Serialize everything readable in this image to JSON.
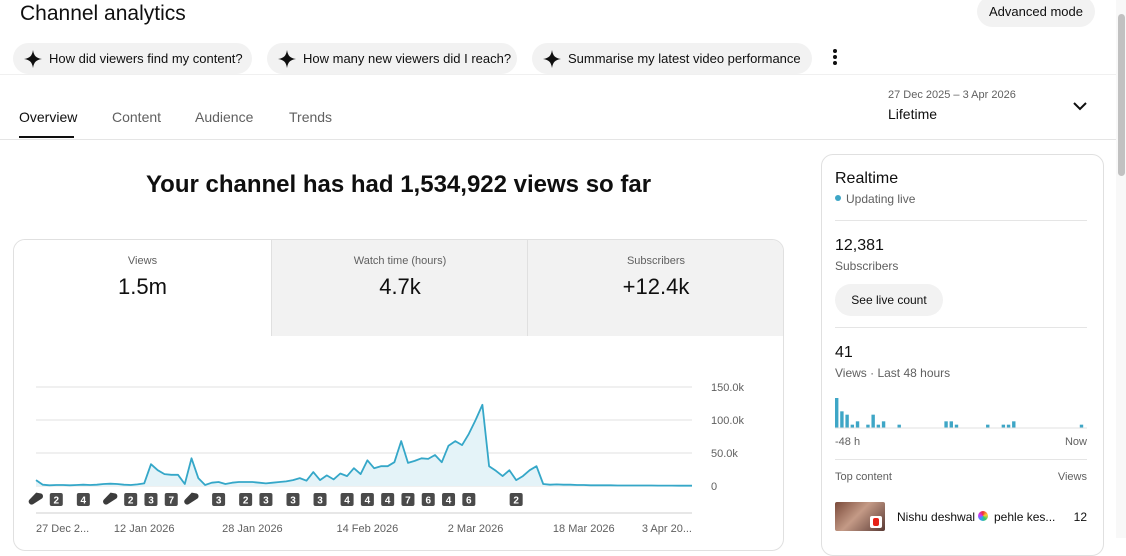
{
  "header": {
    "title": "Channel analytics",
    "advanced_mode": "Advanced mode"
  },
  "suggestions": [
    "How did viewers find my content?",
    "How many new viewers did I reach?",
    "Summarise my latest video performance"
  ],
  "tabs": [
    "Overview",
    "Content",
    "Audience",
    "Trends"
  ],
  "date_range": {
    "range": "27 Dec 2025 – 3 Apr 2026",
    "period": "Lifetime"
  },
  "headline": "Your channel has had 1,534,922 views so far",
  "metrics": [
    {
      "label": "Views",
      "value": "1.5m"
    },
    {
      "label": "Watch time (hours)",
      "value": "4.7k"
    },
    {
      "label": "Subscribers",
      "value": "+12.4k"
    }
  ],
  "realtime": {
    "title": "Realtime",
    "status": "Updating live",
    "subscribers": "12,381",
    "subscribers_label": "Subscribers",
    "button": "See live count",
    "views": "41",
    "views_label": "Views · Last 48 hours",
    "top_content": {
      "title": "Top content",
      "column": "Views",
      "items": [
        {
          "channel": "Nishu deshwal",
          "title": "pehle kes...",
          "views": "12"
        }
      ]
    }
  },
  "chart_data": [
    {
      "type": "line",
      "color": "#35a7c8",
      "fill": "#e4f3f8",
      "grid": true,
      "ylim": [
        0,
        150000
      ],
      "yticks": [
        {
          "value": 0,
          "label": "0"
        },
        {
          "value": 50000,
          "label": "50.0k"
        },
        {
          "value": 100000,
          "label": "100.0k"
        },
        {
          "value": 150000,
          "label": "150.0k"
        }
      ],
      "categories": [
        "27 Dec 2...",
        null,
        null,
        null,
        null,
        null,
        null,
        null,
        null,
        null,
        null,
        null,
        null,
        null,
        null,
        null,
        "12 Jan 2026",
        null,
        null,
        null,
        null,
        null,
        null,
        null,
        null,
        null,
        null,
        null,
        null,
        null,
        null,
        null,
        "28 Jan 2026",
        null,
        null,
        null,
        null,
        null,
        null,
        null,
        null,
        null,
        null,
        null,
        null,
        null,
        null,
        null,
        null,
        "14 Feb 2026",
        null,
        null,
        null,
        null,
        null,
        null,
        null,
        null,
        null,
        null,
        null,
        null,
        null,
        null,
        null,
        "2 Mar 2026",
        null,
        null,
        null,
        null,
        null,
        null,
        null,
        null,
        null,
        null,
        null,
        null,
        null,
        null,
        null,
        "18 Mar 2026",
        null,
        null,
        null,
        null,
        null,
        null,
        null,
        null,
        null,
        null,
        null,
        null,
        null,
        null,
        null,
        "3 Apr 20..."
      ],
      "values": [
        9000,
        2000,
        1000,
        1500,
        1500,
        1000,
        1500,
        2000,
        1500,
        2000,
        3000,
        3500,
        3000,
        2000,
        1500,
        2500,
        4000,
        33000,
        24000,
        18000,
        17000,
        17000,
        3000,
        42000,
        12000,
        1500,
        5000,
        6000,
        3000,
        5000,
        6000,
        6000,
        6000,
        5000,
        4000,
        5000,
        6000,
        7000,
        9000,
        12000,
        8000,
        21000,
        9000,
        16000,
        10000,
        19000,
        15000,
        27000,
        18000,
        39000,
        27000,
        30000,
        30000,
        36000,
        68000,
        35000,
        38000,
        42000,
        41000,
        47000,
        36000,
        61000,
        68000,
        62000,
        79000,
        100000,
        123000,
        30000,
        23000,
        15000,
        24000,
        9000,
        15000,
        24000,
        30000,
        3000,
        2000,
        2500,
        2000,
        2000,
        1500,
        1500,
        1000,
        1000,
        1000,
        1000,
        800,
        800,
        800,
        700,
        700,
        700,
        600,
        600,
        600,
        500,
        500,
        500
      ],
      "markers": [
        {
          "x_index": 0,
          "kind": "short"
        },
        {
          "x_index": 3,
          "count": 2
        },
        {
          "x_index": 7,
          "count": 4
        },
        {
          "x_index": 11,
          "kind": "short"
        },
        {
          "x_index": 14,
          "count": 2
        },
        {
          "x_index": 17,
          "count": 3
        },
        {
          "x_index": 20,
          "count": 7
        },
        {
          "x_index": 23,
          "kind": "short"
        },
        {
          "x_index": 27,
          "count": 3
        },
        {
          "x_index": 31,
          "count": 2
        },
        {
          "x_index": 34,
          "count": 3
        },
        {
          "x_index": 38,
          "count": 3
        },
        {
          "x_index": 42,
          "count": 3
        },
        {
          "x_index": 46,
          "count": 4
        },
        {
          "x_index": 49,
          "count": 4
        },
        {
          "x_index": 52,
          "count": 4
        },
        {
          "x_index": 55,
          "count": 7
        },
        {
          "x_index": 58,
          "count": 6
        },
        {
          "x_index": 61,
          "count": 4
        },
        {
          "x_index": 64,
          "count": 6
        },
        {
          "x_index": 71,
          "count": 2
        }
      ]
    },
    {
      "type": "bar",
      "color": "#3ea6c6",
      "x_labels": [
        "-48 h",
        "Now"
      ],
      "values": [
        9,
        5,
        4,
        1,
        2,
        0,
        1,
        4,
        1,
        2,
        0,
        0,
        1,
        0,
        0,
        0,
        0,
        0,
        0,
        0,
        0,
        2,
        2,
        1,
        0,
        0,
        0,
        0,
        0,
        1,
        0,
        0,
        1,
        1,
        2,
        0,
        0,
        0,
        0,
        0,
        0,
        0,
        0,
        0,
        0,
        0,
        0,
        1
      ]
    }
  ]
}
